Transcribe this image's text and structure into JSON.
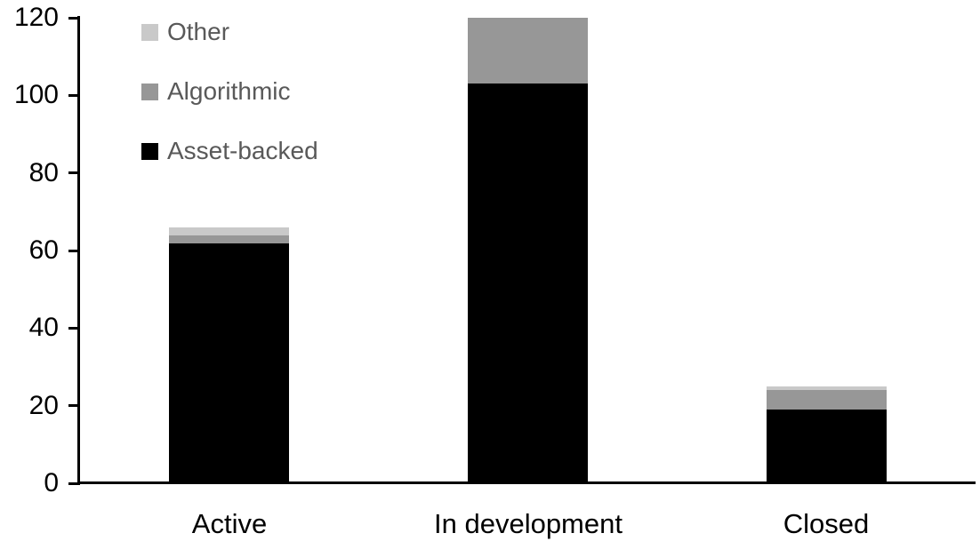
{
  "chart_data": {
    "type": "bar",
    "stacked": true,
    "title": "",
    "categories": [
      "Active",
      "In development",
      "Closed"
    ],
    "series": [
      {
        "name": "Asset-backed",
        "color": "#000000",
        "values": [
          62,
          103,
          19
        ]
      },
      {
        "name": "Algorithmic",
        "color": "#979797",
        "values": [
          2,
          17,
          5
        ]
      },
      {
        "name": "Other",
        "color": "#c9c9c9",
        "values": [
          2,
          0,
          1
        ]
      }
    ],
    "legend_order": [
      "Other",
      "Algorithmic",
      "Asset-backed"
    ],
    "legend_position": "top-left",
    "y_ticks": [
      0,
      20,
      40,
      60,
      80,
      100,
      120
    ],
    "ylim": [
      0,
      120
    ],
    "grid": false,
    "axis_color": "#000000",
    "legend_text_color": "#595959"
  }
}
